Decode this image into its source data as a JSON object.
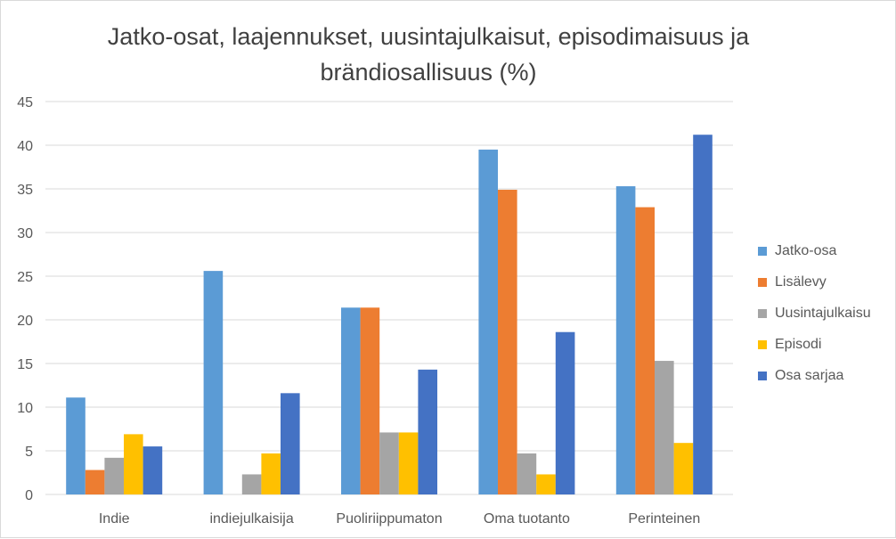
{
  "chart_data": {
    "type": "bar",
    "title": "Jatko-osat, laajennukset, uusintajulkaisut, episodimaisuus ja brändiosallisuus (%)",
    "xlabel": "",
    "ylabel": "",
    "ylim": [
      0,
      45
    ],
    "yticks": [
      "0",
      "5",
      "10",
      "15",
      "20",
      "25",
      "30",
      "35",
      "40",
      "45"
    ],
    "categories": [
      "Indie",
      "indiejulkaisija",
      "Puoliriippumaton",
      "Oma tuotanto",
      "Perinteinen"
    ],
    "series": [
      {
        "name": "Jatko-osa",
        "color": "#5b9bd5",
        "values": [
          11.1,
          25.6,
          21.4,
          39.5,
          35.3
        ]
      },
      {
        "name": "Lisälevy",
        "color": "#ed7d31",
        "values": [
          2.8,
          0,
          21.4,
          34.9,
          32.9
        ]
      },
      {
        "name": "Uusintajulkaisu",
        "color": "#a5a5a5",
        "values": [
          4.2,
          2.3,
          7.1,
          4.7,
          15.3
        ]
      },
      {
        "name": "Episodi",
        "color": "#ffc000",
        "values": [
          6.9,
          4.7,
          7.1,
          2.3,
          5.9
        ]
      },
      {
        "name": "Osa sarjaa",
        "color": "#4472c4",
        "values": [
          5.5,
          11.6,
          14.3,
          18.6,
          41.2
        ]
      }
    ],
    "grid": true,
    "legend_position": "right"
  }
}
